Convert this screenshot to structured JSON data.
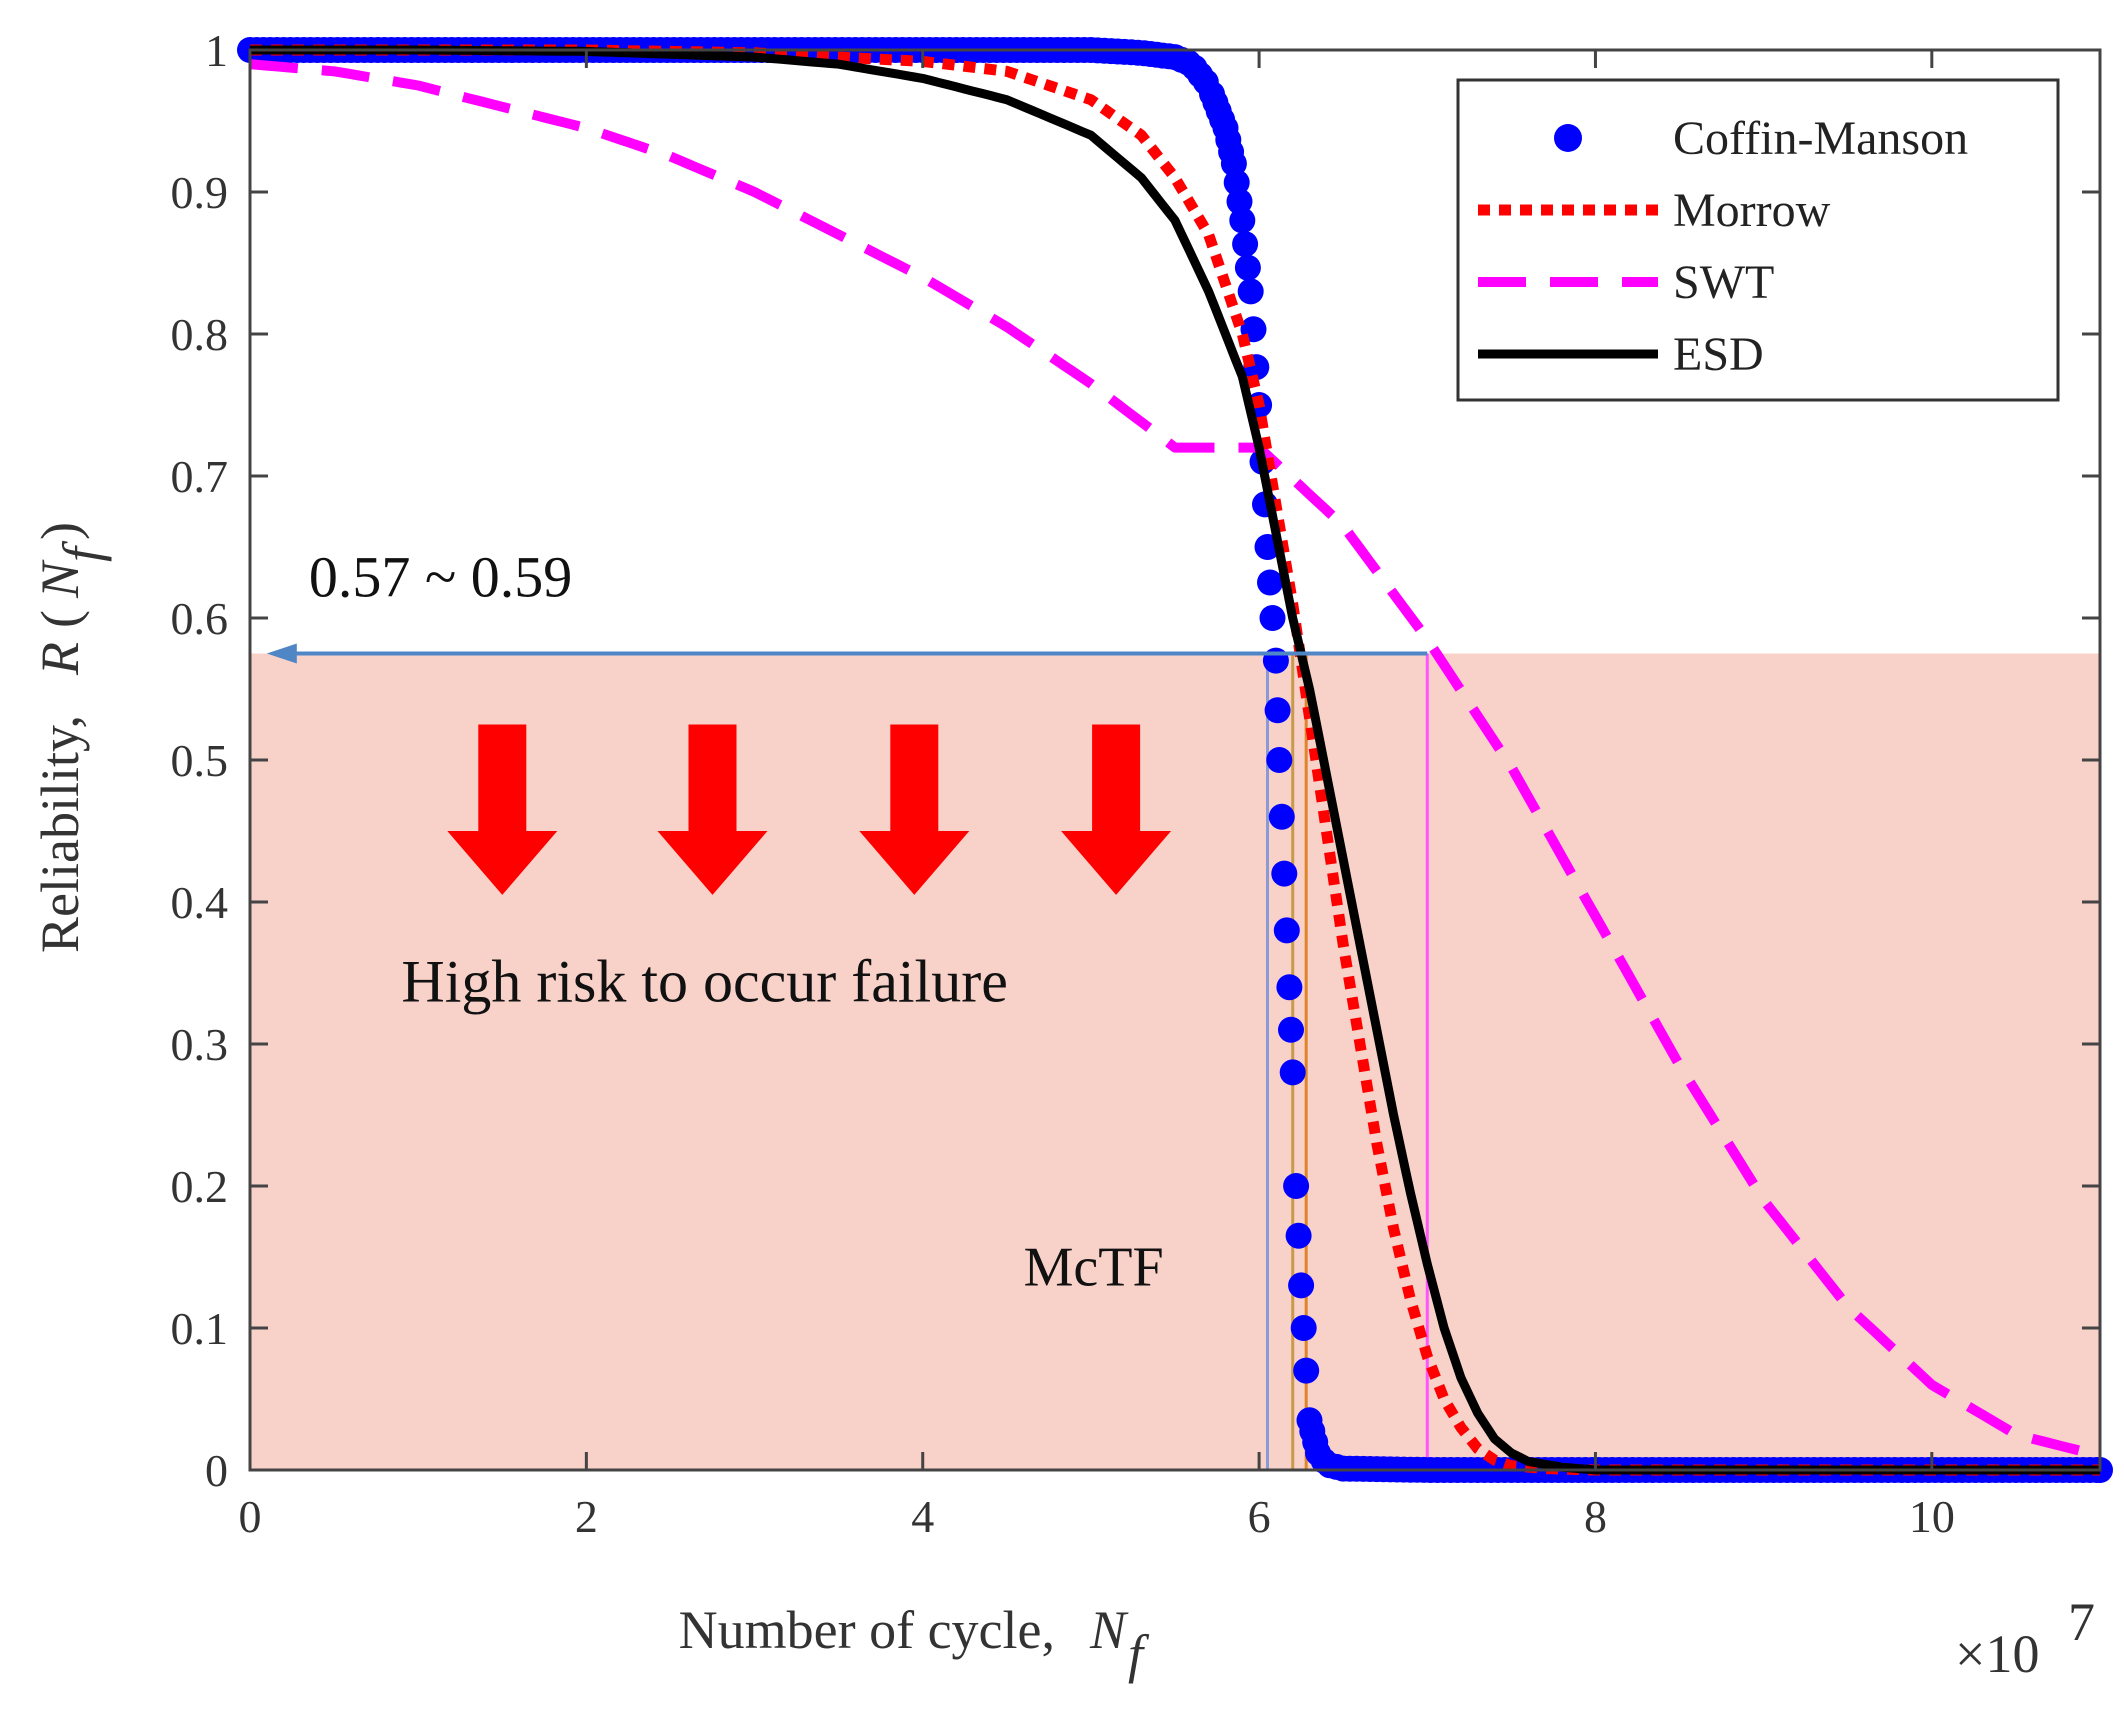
{
  "chart_data": {
    "type": "line",
    "title": "",
    "xlabel": "Number of cycle,",
    "xlabel_symbol": "N",
    "xlabel_subscript": "f",
    "ylabel": "Reliability,",
    "ylabel_symbol": "R",
    "ylabel_open": "(",
    "ylabel_arg": "N",
    "ylabel_arg_subscript": "f",
    "ylabel_close": ")",
    "x_multiplier": "×10",
    "x_multiplier_exp": "7",
    "xlim": [
      0,
      11
    ],
    "ylim": [
      0,
      1
    ],
    "xticks": [
      0,
      2,
      4,
      6,
      8,
      10
    ],
    "xtick_labels": [
      "0",
      "2",
      "4",
      "6",
      "8",
      "10"
    ],
    "yticks": [
      0,
      0.1,
      0.2,
      0.3,
      0.4,
      0.5,
      0.6,
      0.7,
      0.8,
      0.9,
      1
    ],
    "ytick_labels": [
      "0",
      "0.1",
      "0.2",
      "0.3",
      "0.4",
      "0.5",
      "0.6",
      "0.7",
      "0.8",
      "0.9",
      "1"
    ],
    "grid": false,
    "legend_position": "top-right",
    "series": [
      {
        "name": "Coffin-Manson",
        "style": "markers",
        "color": "#0000ff",
        "x": [
          0,
          1,
          2,
          3,
          4,
          5,
          5.3,
          5.5,
          5.6,
          5.7,
          5.8,
          5.85,
          5.9,
          5.95,
          6.0,
          6.02,
          6.05,
          6.08,
          6.1,
          6.12,
          6.15,
          6.18,
          6.2,
          6.22,
          6.25,
          6.28,
          6.3,
          6.35,
          6.4,
          6.5,
          7,
          8,
          9,
          10,
          11
        ],
        "y": [
          1,
          1,
          1,
          1,
          1,
          1,
          0.998,
          0.995,
          0.99,
          0.975,
          0.945,
          0.92,
          0.88,
          0.83,
          0.75,
          0.71,
          0.65,
          0.6,
          0.57,
          0.5,
          0.42,
          0.34,
          0.28,
          0.2,
          0.13,
          0.07,
          0.035,
          0.012,
          0.004,
          0.001,
          0,
          0,
          0,
          0,
          0
        ]
      },
      {
        "name": "Morrow",
        "style": "dotted",
        "color": "#ff0000",
        "x": [
          0,
          1,
          2,
          3,
          4,
          4.5,
          5,
          5.3,
          5.5,
          5.7,
          5.9,
          6.0,
          6.1,
          6.2,
          6.3,
          6.4,
          6.5,
          6.6,
          6.7,
          6.8,
          6.9,
          7.0,
          7.1,
          7.2,
          7.3,
          7.4,
          7.5,
          7.7,
          8,
          9,
          10,
          11
        ],
        "y": [
          1,
          1,
          1,
          0.998,
          0.992,
          0.985,
          0.965,
          0.94,
          0.91,
          0.87,
          0.8,
          0.75,
          0.68,
          0.61,
          0.53,
          0.45,
          0.37,
          0.3,
          0.23,
          0.17,
          0.12,
          0.08,
          0.05,
          0.03,
          0.015,
          0.007,
          0.003,
          0.001,
          0,
          0,
          0,
          0
        ]
      },
      {
        "name": "SWT",
        "style": "dashed",
        "color": "#ff00ff",
        "x": [
          0,
          0.5,
          1,
          1.5,
          2,
          2.5,
          3,
          3.5,
          4,
          4.5,
          5,
          5.5,
          6,
          6.5,
          7,
          7.5,
          8,
          8.5,
          9,
          9.5,
          10,
          10.5,
          11
        ],
        "y": [
          0.99,
          0.985,
          0.975,
          0.96,
          0.945,
          0.925,
          0.9,
          0.87,
          0.84,
          0.805,
          0.765,
          0.72,
          0.72,
          0.665,
          0.585,
          0.495,
          0.39,
          0.285,
          0.19,
          0.115,
          0.06,
          0.025,
          0.01
        ]
      },
      {
        "name": "ESD",
        "style": "solid",
        "color": "#000000",
        "x": [
          0,
          1,
          2,
          3,
          3.5,
          4,
          4.5,
          5,
          5.3,
          5.5,
          5.7,
          5.9,
          6.0,
          6.1,
          6.2,
          6.3,
          6.4,
          6.5,
          6.6,
          6.7,
          6.8,
          6.9,
          7.0,
          7.1,
          7.2,
          7.3,
          7.4,
          7.5,
          7.6,
          7.8,
          8,
          9,
          10,
          11
        ],
        "y": [
          1,
          1,
          0.999,
          0.995,
          0.99,
          0.98,
          0.965,
          0.94,
          0.91,
          0.88,
          0.83,
          0.77,
          0.72,
          0.66,
          0.6,
          0.55,
          0.49,
          0.43,
          0.37,
          0.31,
          0.25,
          0.195,
          0.145,
          0.1,
          0.065,
          0.04,
          0.022,
          0.012,
          0.006,
          0.002,
          0,
          0,
          0,
          0
        ]
      }
    ],
    "shaded_region": {
      "x": [
        0,
        11
      ],
      "y": [
        0,
        0.575
      ],
      "color": "#f7c9c0"
    },
    "threshold_arrow": {
      "y": 0.575,
      "x_from": 7.0,
      "x_to": 0.1,
      "color": "#4f86c6"
    },
    "vertical_markers": [
      {
        "x": 6.05,
        "color": "#8a9ad6"
      },
      {
        "x": 6.2,
        "color": "#c89a4a"
      },
      {
        "x": 6.28,
        "color": "#e0842a"
      },
      {
        "x": 7.0,
        "color": "#ff55ff"
      }
    ],
    "annotations": [
      {
        "text": "0.57 ~ 0.59",
        "x": 0.35,
        "y": 0.615
      },
      {
        "text": "High risk to occur failure",
        "x": 0.9,
        "y": 0.33
      },
      {
        "text": "McTF",
        "x": 4.6,
        "y": 0.13
      }
    ],
    "down_arrows_x": [
      1.5,
      2.75,
      3.95,
      5.15
    ],
    "down_arrow_color": "#ff0000"
  }
}
